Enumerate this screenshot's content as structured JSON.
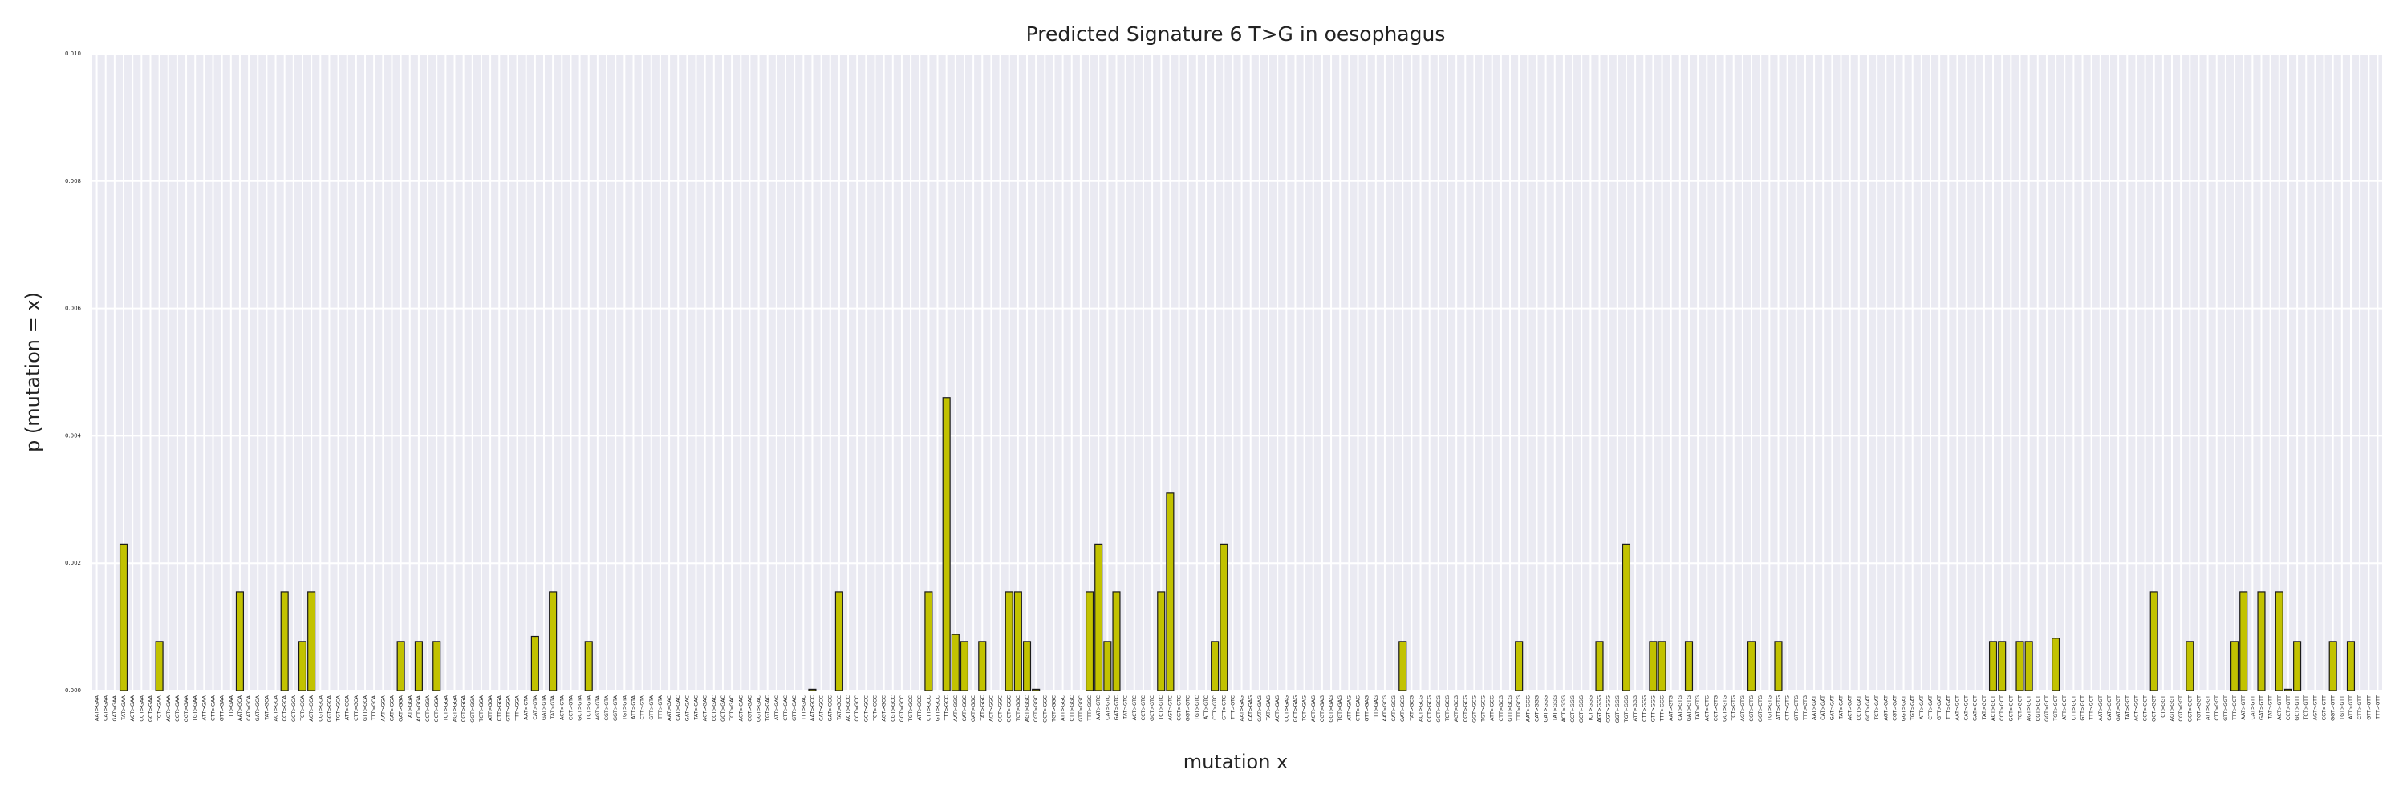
{
  "chart_data": {
    "type": "bar",
    "title": "Predicted Signature 6 T>G in oesophagus",
    "x_label": "mutation x",
    "y_label": "p (mutation = x)",
    "categories": [
      "AAT>GAA",
      "CAT>GAA",
      "GAT>GAA",
      "TAT>GAA",
      "ACT>GAA",
      "CCT>GAA",
      "GCT>GAA",
      "TCT>GAA",
      "AGT>GAA",
      "CGT>GAA",
      "GGT>GAA",
      "TGT>GAA",
      "ATT>GAA",
      "CTT>GAA",
      "GTT>GAA",
      "TTT>GAA",
      "AAT>GCA",
      "CAT>GCA",
      "GAT>GCA",
      "TAT>GCA",
      "ACT>GCA",
      "CCT>GCA",
      "GCT>GCA",
      "TCT>GCA",
      "AGT>GCA",
      "CGT>GCA",
      "GGT>GCA",
      "TGT>GCA",
      "ATT>GCA",
      "CTT>GCA",
      "GTT>GCA",
      "TTT>GCA",
      "AAT>GGA",
      "CAT>GGA",
      "GAT>GGA",
      "TAT>GGA",
      "ACT>GGA",
      "CCT>GGA",
      "GCT>GGA",
      "TCT>GGA",
      "AGT>GGA",
      "CGT>GGA",
      "GGT>GGA",
      "TGT>GGA",
      "ATT>GGA",
      "CTT>GGA",
      "GTT>GGA",
      "TTT>GGA",
      "AAT>GTA",
      "CAT>GTA",
      "GAT>GTA",
      "TAT>GTA",
      "ACT>GTA",
      "CCT>GTA",
      "GCT>GTA",
      "TCT>GTA",
      "AGT>GTA",
      "CGT>GTA",
      "GGT>GTA",
      "TGT>GTA",
      "ATT>GTA",
      "CTT>GTA",
      "GTT>GTA",
      "TTT>GTA",
      "AAT>GAC",
      "CAT>GAC",
      "GAT>GAC",
      "TAT>GAC",
      "ACT>GAC",
      "CCT>GAC",
      "GCT>GAC",
      "TCT>GAC",
      "AGT>GAC",
      "CGT>GAC",
      "GGT>GAC",
      "TGT>GAC",
      "ATT>GAC",
      "CTT>GAC",
      "GTT>GAC",
      "TTT>GAC",
      "AAT>GCC",
      "CAT>GCC",
      "GAT>GCC",
      "TAT>GCC",
      "ACT>GCC",
      "CCT>GCC",
      "GCT>GCC",
      "TCT>GCC",
      "AGT>GCC",
      "CGT>GCC",
      "GGT>GCC",
      "TGT>GCC",
      "ATT>GCC",
      "CTT>GCC",
      "GTT>GCC",
      "TTT>GCC",
      "AAT>GGC",
      "CAT>GGC",
      "GAT>GGC",
      "TAT>GGC",
      "ACT>GGC",
      "CCT>GGC",
      "GCT>GGC",
      "TCT>GGC",
      "AGT>GGC",
      "CGT>GGC",
      "GGT>GGC",
      "TGT>GGC",
      "ATT>GGC",
      "CTT>GGC",
      "GTT>GGC",
      "TTT>GGC",
      "AAT>GTC",
      "CAT>GTC",
      "GAT>GTC",
      "TAT>GTC",
      "ACT>GTC",
      "CCT>GTC",
      "GCT>GTC",
      "TCT>GTC",
      "AGT>GTC",
      "CGT>GTC",
      "GGT>GTC",
      "TGT>GTC",
      "ATT>GTC",
      "CTT>GTC",
      "GTT>GTC",
      "TTT>GTC",
      "AAT>GAG",
      "CAT>GAG",
      "GAT>GAG",
      "TAT>GAG",
      "ACT>GAG",
      "CCT>GAG",
      "GCT>GAG",
      "TCT>GAG",
      "AGT>GAG",
      "CGT>GAG",
      "GGT>GAG",
      "TGT>GAG",
      "ATT>GAG",
      "CTT>GAG",
      "GTT>GAG",
      "TTT>GAG",
      "AAT>GCG",
      "CAT>GCG",
      "GAT>GCG",
      "TAT>GCG",
      "ACT>GCG",
      "CCT>GCG",
      "GCT>GCG",
      "TCT>GCG",
      "AGT>GCG",
      "CGT>GCG",
      "GGT>GCG",
      "TGT>GCG",
      "ATT>GCG",
      "CTT>GCG",
      "GTT>GCG",
      "TTT>GCG",
      "AAT>GGG",
      "CAT>GGG",
      "GAT>GGG",
      "TAT>GGG",
      "ACT>GGG",
      "CCT>GGG",
      "GCT>GGG",
      "TCT>GGG",
      "AGT>GGG",
      "CGT>GGG",
      "GGT>GGG",
      "TGT>GGG",
      "ATT>GGG",
      "CTT>GGG",
      "GTT>GGG",
      "TTT>GGG",
      "AAT>GTG",
      "CAT>GTG",
      "GAT>GTG",
      "TAT>GTG",
      "ACT>GTG",
      "CCT>GTG",
      "GCT>GTG",
      "TCT>GTG",
      "AGT>GTG",
      "CGT>GTG",
      "GGT>GTG",
      "TGT>GTG",
      "ATT>GTG",
      "CTT>GTG",
      "GTT>GTG",
      "TTT>GTG",
      "AAT>GAT",
      "CAT>GAT",
      "GAT>GAT",
      "TAT>GAT",
      "ACT>GAT",
      "CCT>GAT",
      "GCT>GAT",
      "TCT>GAT",
      "AGT>GAT",
      "CGT>GAT",
      "GGT>GAT",
      "TGT>GAT",
      "ATT>GAT",
      "CTT>GAT",
      "GTT>GAT",
      "TTT>GAT",
      "AAT>GCT",
      "CAT>GCT",
      "GAT>GCT",
      "TAT>GCT",
      "ACT>GCT",
      "CCT>GCT",
      "GCT>GCT",
      "TCT>GCT",
      "AGT>GCT",
      "CGT>GCT",
      "GGT>GCT",
      "TGT>GCT",
      "ATT>GCT",
      "CTT>GCT",
      "GTT>GCT",
      "TTT>GCT",
      "AAT>GGT",
      "CAT>GGT",
      "GAT>GGT",
      "TAT>GGT",
      "ACT>GGT",
      "CCT>GGT",
      "GCT>GGT",
      "TCT>GGT",
      "AGT>GGT",
      "CGT>GGT",
      "GGT>GGT",
      "TGT>GGT",
      "ATT>GGT",
      "CTT>GGT",
      "GTT>GGT",
      "TTT>GGT",
      "AAT>GTT",
      "CAT>GTT",
      "GAT>GTT",
      "TAT>GTT",
      "ACT>GTT",
      "CCT>GTT",
      "GCT>GTT",
      "TCT>GTT",
      "AGT>GTT",
      "CGT>GTT",
      "GGT>GTT",
      "TGT>GTT",
      "ATT>GTT",
      "CTT>GTT",
      "GTT>GTT",
      "TTT>GTT"
    ],
    "values": [
      0,
      0,
      0,
      0.0023,
      0,
      0,
      0,
      0.00077,
      0,
      0,
      0,
      0,
      0,
      0,
      0,
      0,
      0.00155,
      0,
      0,
      0,
      0,
      0.00155,
      0,
      0.00077,
      0.00155,
      0,
      0,
      0,
      0,
      0,
      0,
      0,
      0,
      0,
      0.00077,
      0,
      0.00077,
      0,
      0.00077,
      0,
      0,
      0,
      0,
      0,
      0,
      0,
      0,
      0,
      0,
      0.00085,
      0,
      0.00155,
      0,
      0,
      0,
      0.00077,
      0,
      0,
      0,
      0,
      0,
      0,
      0,
      0,
      0,
      0,
      0,
      0,
      0,
      0,
      0,
      0,
      0,
      0,
      0,
      0,
      0,
      0,
      0,
      0,
      2e-05,
      0,
      0,
      0.00155,
      0,
      0,
      0,
      0,
      0,
      0,
      0,
      0,
      0,
      0.00155,
      0,
      0.0046,
      0.00088,
      0.00077,
      0,
      0.00077,
      0,
      0,
      0.00155,
      0.00155,
      0.00077,
      2e-05,
      0,
      0,
      0,
      0,
      0,
      0.00155,
      0.0023,
      0.00077,
      0.00155,
      0,
      0,
      0,
      0,
      0.00155,
      0.0031,
      0,
      0,
      0,
      0,
      0.00077,
      0.0023,
      0,
      0,
      0,
      0,
      0,
      0,
      0,
      0,
      0,
      0,
      0,
      0,
      0,
      0,
      0,
      0,
      0,
      0,
      0,
      0.00077,
      0,
      0,
      0,
      0,
      0,
      0,
      0,
      0,
      0,
      0,
      0,
      0,
      0.00077,
      0,
      0,
      0,
      0,
      0,
      0,
      0,
      0,
      0.00077,
      0,
      0,
      0.0023,
      0,
      0,
      0.00077,
      0.00077,
      0,
      0,
      0.00077,
      0,
      0,
      0,
      0,
      0,
      0,
      0.00077,
      0,
      0,
      0.00077,
      0,
      0,
      0,
      0,
      0,
      0,
      0,
      0,
      0,
      0,
      0,
      0,
      0,
      0,
      0,
      0,
      0,
      0,
      0,
      0,
      0,
      0,
      0,
      0.00077,
      0.00077,
      0,
      0.00077,
      0.00077,
      0,
      0,
      0.00082,
      0,
      0,
      0,
      0,
      0,
      0,
      0,
      0,
      0,
      0,
      0.00155,
      0,
      0,
      0,
      0.00077,
      0,
      0,
      0,
      0,
      0.00077,
      0.00155,
      0,
      0.00155,
      0,
      0.00155,
      2e-05,
      0.00077,
      0,
      0,
      0,
      0.00077,
      0,
      0.00077,
      0,
      0,
      0
    ],
    "color": "#c2c200",
    "edge_color": "#1a1a1a",
    "background_color": "#eaeaf2",
    "grid_color": "#ffffff",
    "grid": true,
    "ylim": [
      0,
      0.01
    ],
    "yticks": [
      {
        "value": 0,
        "label": "0.000"
      },
      {
        "value": 0.002,
        "label": "0.002"
      },
      {
        "value": 0.004,
        "label": "0.004"
      },
      {
        "value": 0.006,
        "label": "0.006"
      },
      {
        "value": 0.008,
        "label": "0.008"
      },
      {
        "value": 0.01,
        "label": "0.010"
      }
    ]
  }
}
